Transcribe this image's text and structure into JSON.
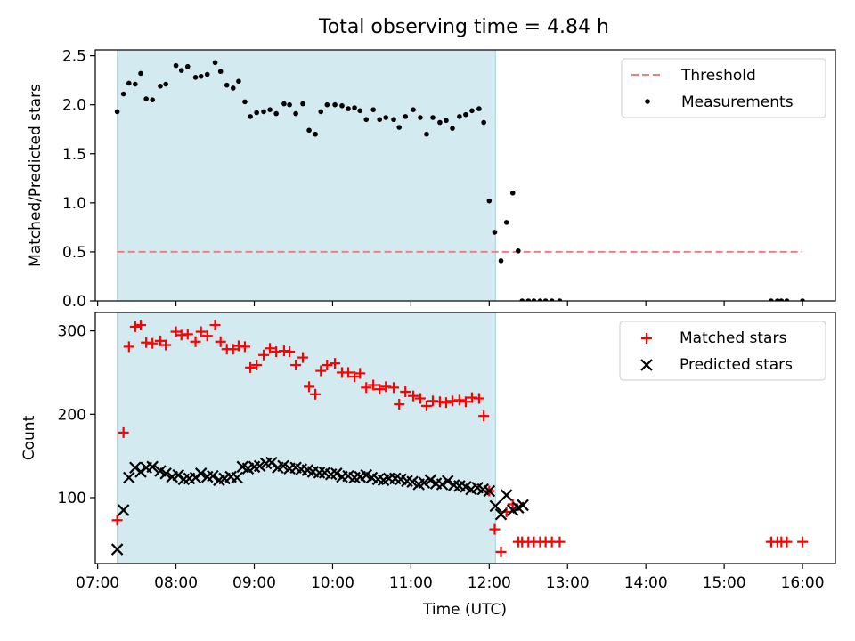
{
  "title": "Total observing time = 4.84 h",
  "chart_data": [
    {
      "type": "scatter",
      "ylabel": "Matched/Predicted stars",
      "xlabel": "",
      "x_unit": "hours UTC",
      "xlim": [
        6.97,
        16.42
      ],
      "ylim": [
        0.0,
        2.56
      ],
      "xticks": [
        7,
        8,
        9,
        10,
        11,
        12,
        13,
        14,
        15,
        16
      ],
      "yticks": [
        0.0,
        0.5,
        1.0,
        1.5,
        2.0,
        2.5
      ],
      "ytick_labels": [
        "0.0",
        "0.5",
        "1.0",
        "1.5",
        "2.0",
        "2.5"
      ],
      "shaded_region": {
        "x_start": 7.25,
        "x_end": 12.08,
        "color": "#d3eaf0"
      },
      "threshold": {
        "name": "Threshold",
        "value": 0.5,
        "x_start": 7.25,
        "x_end": 16.0,
        "color": "#f08080",
        "style": "dashed"
      },
      "legend_position": "top-right",
      "series": [
        {
          "name": "Measurements",
          "marker": "dot",
          "color": "#000000",
          "x": [
            7.25,
            7.33,
            7.4,
            7.48,
            7.55,
            7.62,
            7.7,
            7.8,
            7.87,
            8.0,
            8.07,
            8.15,
            8.25,
            8.32,
            8.4,
            8.5,
            8.57,
            8.65,
            8.73,
            8.8,
            8.88,
            8.95,
            9.03,
            9.12,
            9.2,
            9.28,
            9.38,
            9.45,
            9.53,
            9.62,
            9.7,
            9.78,
            9.85,
            9.93,
            10.03,
            10.12,
            10.2,
            10.28,
            10.35,
            10.43,
            10.52,
            10.6,
            10.68,
            10.78,
            10.85,
            10.93,
            11.03,
            11.12,
            11.2,
            11.28,
            11.37,
            11.45,
            11.53,
            11.62,
            11.7,
            11.78,
            11.87,
            11.93,
            12.0,
            12.07,
            12.15,
            12.22,
            12.3,
            12.37,
            12.42,
            12.5,
            12.57,
            12.65,
            12.72,
            12.8,
            12.9,
            15.6,
            15.68,
            15.73,
            15.8,
            16.0
          ],
          "y": [
            1.93,
            2.11,
            2.22,
            2.21,
            2.32,
            2.06,
            2.05,
            2.19,
            2.21,
            2.4,
            2.35,
            2.39,
            2.28,
            2.29,
            2.31,
            2.43,
            2.34,
            2.2,
            2.17,
            2.24,
            2.03,
            1.88,
            1.92,
            1.93,
            1.95,
            1.91,
            2.01,
            2.0,
            1.91,
            2.01,
            1.74,
            1.7,
            1.93,
            2.0,
            2.0,
            1.99,
            1.96,
            1.97,
            1.94,
            1.85,
            1.95,
            1.85,
            1.87,
            1.85,
            1.77,
            1.88,
            1.95,
            1.87,
            1.7,
            1.87,
            1.82,
            1.84,
            1.76,
            1.88,
            1.9,
            1.94,
            1.96,
            1.82,
            1.02,
            0.7,
            0.41,
            0.8,
            1.1,
            0.51,
            0.0,
            0.0,
            0.0,
            0.0,
            0.0,
            0.0,
            0.0,
            0.0,
            0.0,
            0.0,
            0.0,
            0.0
          ]
        }
      ]
    },
    {
      "type": "scatter",
      "ylabel": "Count",
      "xlabel": "Time (UTC)",
      "x_unit": "hours UTC",
      "xlim": [
        6.97,
        16.42
      ],
      "ylim": [
        21,
        322
      ],
      "xticks": [
        7,
        8,
        9,
        10,
        11,
        12,
        13,
        14,
        15,
        16
      ],
      "xtick_labels": [
        "07:00",
        "08:00",
        "09:00",
        "10:00",
        "11:00",
        "12:00",
        "13:00",
        "14:00",
        "15:00",
        "16:00"
      ],
      "yticks": [
        100,
        200,
        300
      ],
      "ytick_labels": [
        "100",
        "200",
        "300"
      ],
      "shaded_region": {
        "x_start": 7.25,
        "x_end": 12.08,
        "color": "#d3eaf0"
      },
      "legend_position": "top-right",
      "series": [
        {
          "name": "Matched stars",
          "marker": "plus",
          "color": "#ff0000",
          "x": [
            7.25,
            7.33,
            7.4,
            7.48,
            7.55,
            7.62,
            7.7,
            7.8,
            7.87,
            8.0,
            8.07,
            8.15,
            8.25,
            8.32,
            8.4,
            8.5,
            8.57,
            8.65,
            8.73,
            8.8,
            8.88,
            8.95,
            9.03,
            9.12,
            9.2,
            9.28,
            9.38,
            9.45,
            9.53,
            9.62,
            9.7,
            9.78,
            9.85,
            9.93,
            10.03,
            10.12,
            10.2,
            10.28,
            10.35,
            10.43,
            10.52,
            10.6,
            10.68,
            10.78,
            10.85,
            10.93,
            11.03,
            11.12,
            11.2,
            11.28,
            11.37,
            11.45,
            11.53,
            11.62,
            11.7,
            11.78,
            11.87,
            11.93,
            12.0,
            12.07,
            12.15,
            12.22,
            12.3,
            12.37,
            12.42,
            12.5,
            12.57,
            12.65,
            12.72,
            12.8,
            12.9,
            15.6,
            15.68,
            15.73,
            15.8,
            16.0
          ],
          "y": [
            73,
            178,
            281,
            305,
            307,
            286,
            285,
            288,
            283,
            299,
            295,
            296,
            287,
            299,
            294,
            307,
            287,
            278,
            278,
            282,
            281,
            256,
            259,
            271,
            279,
            275,
            276,
            275,
            259,
            268,
            233,
            224,
            252,
            259,
            261,
            250,
            250,
            245,
            249,
            232,
            235,
            230,
            233,
            232,
            212,
            227,
            222,
            219,
            210,
            216,
            215,
            214,
            216,
            217,
            215,
            220,
            219,
            198,
            108,
            62,
            35,
            83,
            92,
            47,
            47,
            47,
            47,
            47,
            47,
            47,
            47,
            47,
            47,
            47,
            47,
            47
          ]
        },
        {
          "name": "Predicted stars",
          "marker": "x",
          "color": "#000000",
          "x": [
            7.25,
            7.33,
            7.4,
            7.48,
            7.55,
            7.62,
            7.7,
            7.8,
            7.87,
            7.95,
            8.03,
            8.1,
            8.17,
            8.25,
            8.32,
            8.4,
            8.47,
            8.55,
            8.62,
            8.7,
            8.78,
            8.85,
            8.92,
            9.0,
            9.07,
            9.15,
            9.22,
            9.3,
            9.37,
            9.45,
            9.53,
            9.6,
            9.68,
            9.75,
            9.83,
            9.9,
            9.98,
            10.05,
            10.12,
            10.2,
            10.28,
            10.35,
            10.43,
            10.5,
            10.58,
            10.65,
            10.72,
            10.8,
            10.87,
            10.95,
            11.02,
            11.1,
            11.17,
            11.25,
            11.32,
            11.4,
            11.47,
            11.55,
            11.62,
            11.7,
            11.77,
            11.85,
            11.92,
            12.0,
            12.08,
            12.15,
            12.22,
            12.3,
            12.37,
            12.43
          ],
          "y": [
            38,
            85,
            124,
            136,
            131,
            136,
            137,
            132,
            129,
            125,
            127,
            122,
            123,
            124,
            129,
            125,
            126,
            121,
            123,
            125,
            124,
            137,
            135,
            137,
            138,
            141,
            142,
            136,
            138,
            135,
            136,
            134,
            133,
            131,
            130,
            130,
            128,
            129,
            125,
            126,
            124,
            125,
            127,
            124,
            122,
            121,
            123,
            123,
            122,
            120,
            119,
            116,
            118,
            121,
            117,
            116,
            120,
            115,
            114,
            113,
            110,
            112,
            110,
            108,
            90,
            80,
            103,
            85,
            88,
            91
          ]
        }
      ]
    }
  ]
}
